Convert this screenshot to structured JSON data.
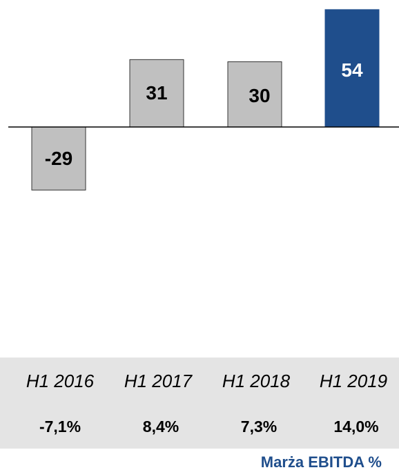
{
  "chart_data": {
    "type": "bar",
    "categories": [
      "H1 2016",
      "H1 2017",
      "H1 2018",
      "H1 2019"
    ],
    "values": [
      -29,
      31,
      30,
      54
    ],
    "data_labels": [
      "-29",
      "31",
      "30",
      "54"
    ],
    "ebitda_margin": [
      "-7,1%",
      "8,4%",
      "7,3%",
      "14,0%"
    ],
    "caption": "Marża EBITDA %",
    "colors": {
      "bar_default": "#c0c0c0",
      "bar_highlight": "#1f4e8c",
      "label_default": "#000000",
      "label_highlight": "#ffffff",
      "caption": "#1f4e8c",
      "band": "#e4e4e4"
    }
  }
}
